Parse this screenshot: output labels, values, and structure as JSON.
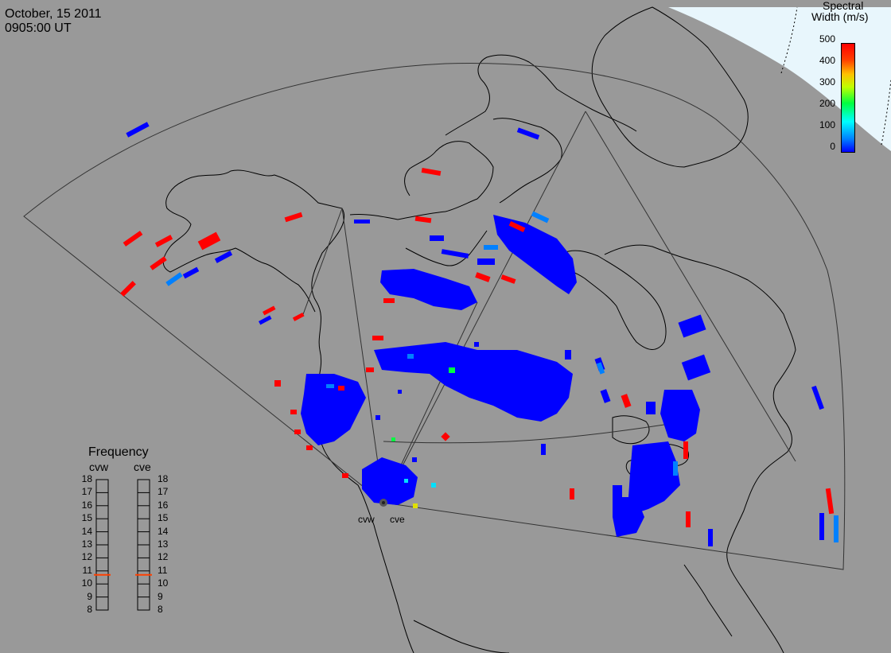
{
  "title": {
    "date": "October, 15 2011",
    "time": "0905:00 UT"
  },
  "colorbar": {
    "title_line1": "Spectral",
    "title_line2": "Width (m/s)",
    "ticks": [
      "500",
      "400",
      "300",
      "200",
      "100",
      "0"
    ],
    "min": 0,
    "max": 500,
    "colors": [
      "#0000ff",
      "#0080ff",
      "#00ffff",
      "#00ff40",
      "#c0ff00",
      "#ffc000",
      "#ff4000",
      "#ff0000"
    ]
  },
  "frequency": {
    "title": "Frequency",
    "radars": [
      "cvw",
      "cve"
    ],
    "scale": [
      "18",
      "17",
      "16",
      "15",
      "14",
      "13",
      "12",
      "11",
      "10",
      "9",
      "8"
    ],
    "current_mhz": {
      "cvw": 10.7,
      "cve": 10.7
    },
    "marker_color": "#ff4000"
  },
  "radars": [
    {
      "code": "cvw"
    },
    {
      "code": "cve"
    }
  ],
  "colors": {
    "background": "#999999",
    "polar_region": "#e8f6fc",
    "coastline": "#000000",
    "data_low": "#0000ff",
    "data_high": "#ff0000"
  }
}
